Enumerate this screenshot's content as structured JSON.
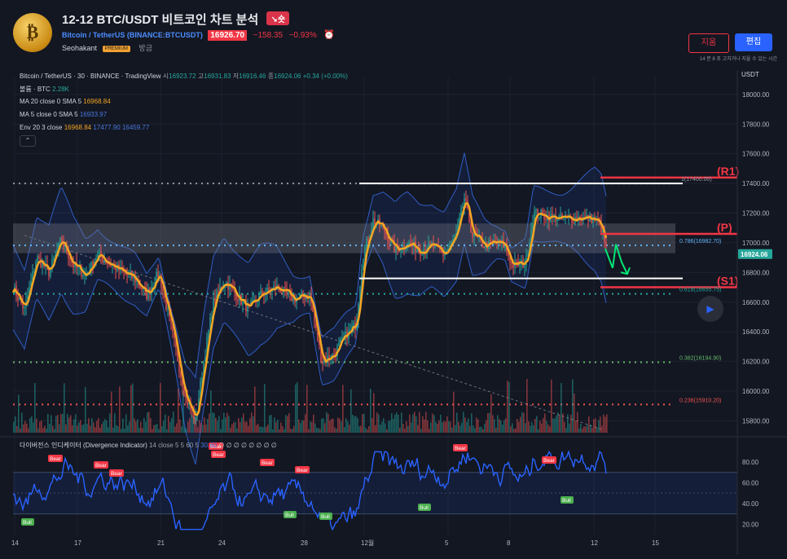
{
  "header": {
    "avatar_glyph": "₿",
    "title": "12-12 BTC/USDT 비트코인 차트 분석",
    "direction_badge": "↘숏",
    "symbol_name": "Bitcoin / TetherUS",
    "symbol_code": "(BINANCE:BTCUSDT)",
    "price": "16926.70",
    "change": "−158.35",
    "change_pct": "−0.93%",
    "alarm_icon": "⏰",
    "author": "Seohakant",
    "premium": "PREMIUM",
    "posted": "방금",
    "delete_label": "지움",
    "edit_label": "편집",
    "edit_note": "14 분 8 초 고치거나 지울 수 있는 시간"
  },
  "legend": {
    "main": "Bitcoin / TetherUS · 30 · BINANCE · TradingView",
    "o_label": "시",
    "o": "16923.72",
    "h_label": "고",
    "h": "16931.83",
    "l_label": "저",
    "l": "16916.46",
    "c_label": "종",
    "c": "16924.06",
    "chg": "+0.34 (+0.00%)",
    "volume_label": "볼륨 · BTC",
    "volume": "2.28K",
    "ma20_label": "MA 20 close 0 SMA 5",
    "ma20": "16968.84",
    "ma5_label": "MA 5 close 0 SMA 5",
    "ma5": "16933.97",
    "env_label": "Env 20 3 close",
    "env_basis": "16968.84",
    "env_upper": "17477.90",
    "env_lower": "16459.77",
    "collapse_icon": "⌃"
  },
  "indicator": {
    "label": "다이버전스 인디케이터 (Divergence Indicator)",
    "params": "14 close 5 5 60 5",
    "value": "30.60",
    "empties": "∅ ∅ ∅ ∅ ∅ ∅ ∅ ∅",
    "bear": "Bear",
    "bull": "Bull"
  },
  "axis": {
    "currency": "USDT",
    "price_ticks": [
      "18000.00",
      "17800.00",
      "17600.00",
      "17400.00",
      "17200.00",
      "17000.00",
      "16800.00",
      "16600.00",
      "16400.00",
      "16200.00",
      "16000.00",
      "15800.00"
    ],
    "osc_ticks": [
      "80.00",
      "60.00",
      "40.00",
      "20.00"
    ],
    "time_ticks": [
      "14",
      "17",
      "21",
      "24",
      "28",
      "12월",
      "5",
      "8",
      "12",
      "15"
    ],
    "last_price": "16924.06"
  },
  "levels": {
    "r1": "(R1)",
    "p": "(P)",
    "s1": "(S1)",
    "fib_top": "1(17400.00)",
    "fib_786": "0.786(16982.70)",
    "fib_618": "0.618(16655.75)",
    "fib_382": "0.382(16194.90)",
    "fib_236": "0.236(15910.20)"
  },
  "chart_data": {
    "type": "line",
    "title": "Bitcoin / TetherUS · 30 · BINANCE · TradingView",
    "ylim": [
      15720,
      18120
    ],
    "x": [
      "14",
      "17",
      "21",
      "24",
      "28",
      "12월",
      "5",
      "8",
      "12"
    ],
    "series": [
      {
        "name": "MA 20 close 0 SMA 5",
        "values": [
          16800,
          16850,
          15900,
          16750,
          16400,
          17000,
          17000,
          16960,
          17150
        ]
      },
      {
        "name": "Env 20 3 close",
        "values": [
          17300,
          17350,
          16400,
          17250,
          16900,
          17550,
          17550,
          17450,
          17600
        ]
      }
    ],
    "horizontal_levels": {
      "R1": 17400.0,
      "P": 17050,
      "S1": 16700,
      "fib_0.786": 16982.7,
      "fib_0.618": 16655.75,
      "fib_0.382": 16194.9,
      "fib_0.236": 15910.2
    },
    "oscillator": {
      "name": "다이버전스 인디케이터 (Divergence Indicator)",
      "ylim": [
        10,
        95
      ],
      "bands": [
        30,
        70
      ],
      "last": 30.6
    }
  },
  "colors": {
    "background": "#131722",
    "price_line": "#f5a623",
    "envelope": "#2f5ec4",
    "resistance": "#f23645",
    "support_band": "#4a5060",
    "bear_badge": "#f23645",
    "bull_badge": "#4caf50",
    "oscillator": "#2962ff",
    "button_primary": "#2962ff"
  }
}
